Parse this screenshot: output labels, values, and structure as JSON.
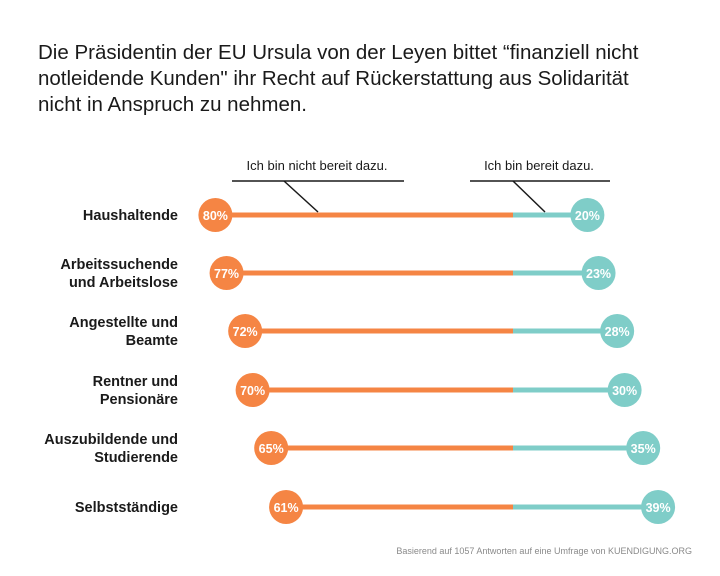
{
  "title_lines": [
    "Die Präsidentin der EU Ursula von der Leyen bittet “finanziell nicht",
    "notleidende Kunden\" ihr Recht auf Rückerstattung aus Solidarität",
    "nicht in Anspruch zu nehmen."
  ],
  "footnote": "Basierend auf 1057 Antworten auf eine Umfrage von KUENDIGUNG.ORG",
  "colors": {
    "not_ready": "#f58544",
    "ready": "#7fcdc8",
    "text": "#1a1a1a"
  },
  "chart_data": {
    "type": "bar",
    "orientation": "horizontal-dumbbell",
    "categories": [
      [
        "Haushaltende"
      ],
      [
        "Arbeitssuchende",
        "und Arbeitslose"
      ],
      [
        "Angestellte und",
        "Beamte"
      ],
      [
        "Rentner und",
        "Pensionäre"
      ],
      [
        "Auszubildende und",
        "Studierende"
      ],
      [
        "Selbstständige"
      ]
    ],
    "series": [
      {
        "name": "Ich bin nicht bereit dazu.",
        "values": [
          80,
          77,
          72,
          70,
          65,
          61
        ],
        "labels": [
          "80%",
          "77%",
          "72%",
          "70%",
          "65%",
          "61%"
        ]
      },
      {
        "name": "Ich bin bereit dazu.",
        "values": [
          20,
          23,
          28,
          30,
          35,
          39
        ],
        "labels": [
          "20%",
          "23%",
          "28%",
          "30%",
          "35%",
          "39%"
        ]
      }
    ],
    "unit": "%",
    "legend_placement": "top, as callouts"
  }
}
